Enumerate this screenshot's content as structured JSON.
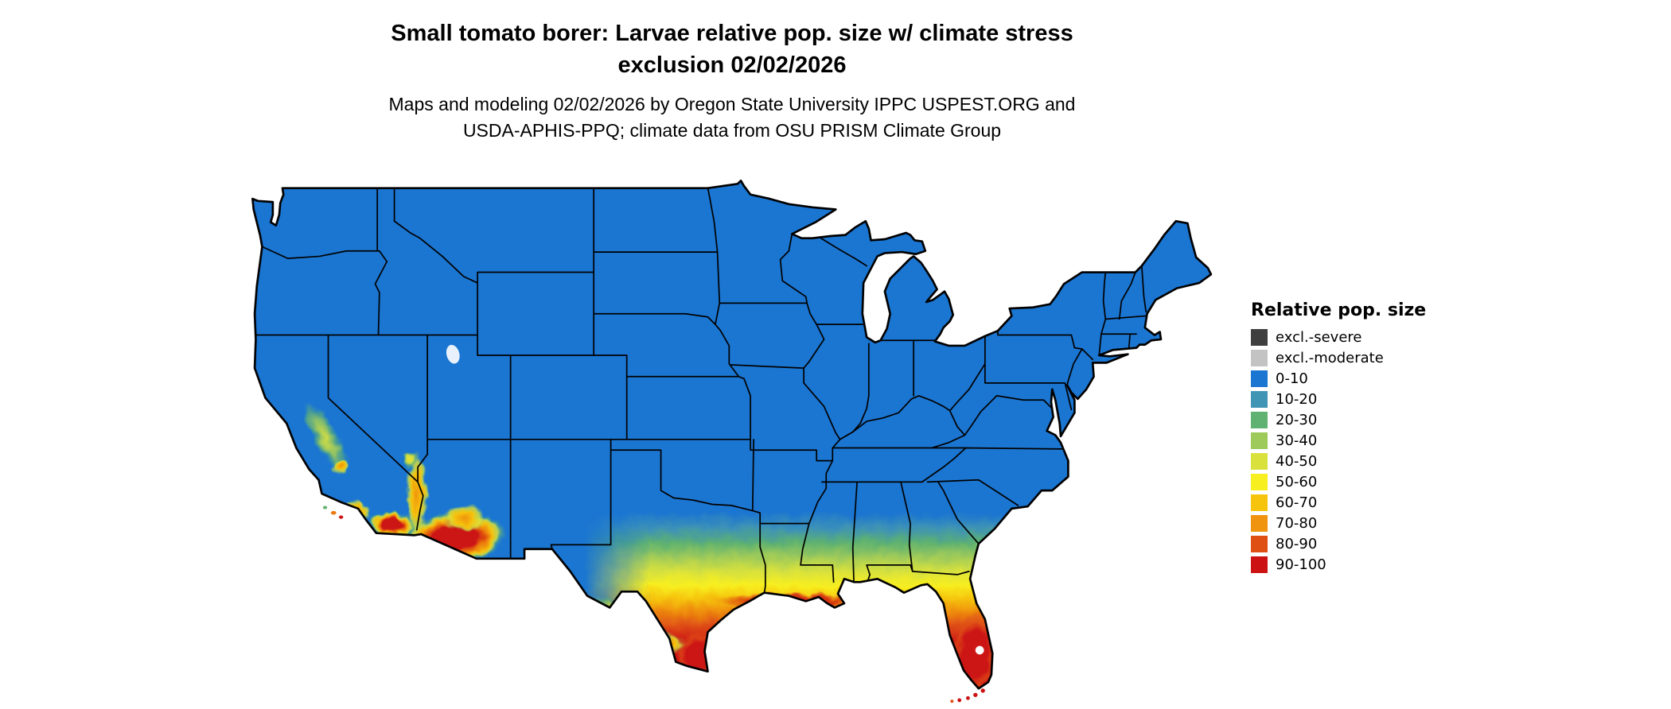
{
  "title": {
    "line1": "Small tomato borer: Larvae relative pop. size w/ climate stress",
    "line2": "exclusion 02/02/2026"
  },
  "subtitle": {
    "line1": "Maps and modeling 02/02/2026 by Oregon State University IPPC USPEST.ORG and",
    "line2": "USDA-APHIS-PPQ; climate data from OSU PRISM Climate Group"
  },
  "legend": {
    "title": "Relative pop. size",
    "items": [
      {
        "label": "excl.-severe",
        "color": "#3f3f3f"
      },
      {
        "label": "excl.-moderate",
        "color": "#c3c3c3"
      },
      {
        "label": "0-10",
        "color": "#1b76d2"
      },
      {
        "label": "10-20",
        "color": "#4195b4"
      },
      {
        "label": "20-30",
        "color": "#5fb271"
      },
      {
        "label": "30-40",
        "color": "#9dca5b"
      },
      {
        "label": "40-50",
        "color": "#d9e23d"
      },
      {
        "label": "50-60",
        "color": "#f8ef20"
      },
      {
        "label": "60-70",
        "color": "#f6c40d"
      },
      {
        "label": "70-80",
        "color": "#f0930f"
      },
      {
        "label": "80-90",
        "color": "#df4f14"
      },
      {
        "label": "90-100",
        "color": "#cc1213"
      }
    ]
  },
  "map": {
    "base_color": "#1b76d2",
    "border_color": "#000000",
    "water_color": "#ffffff"
  }
}
